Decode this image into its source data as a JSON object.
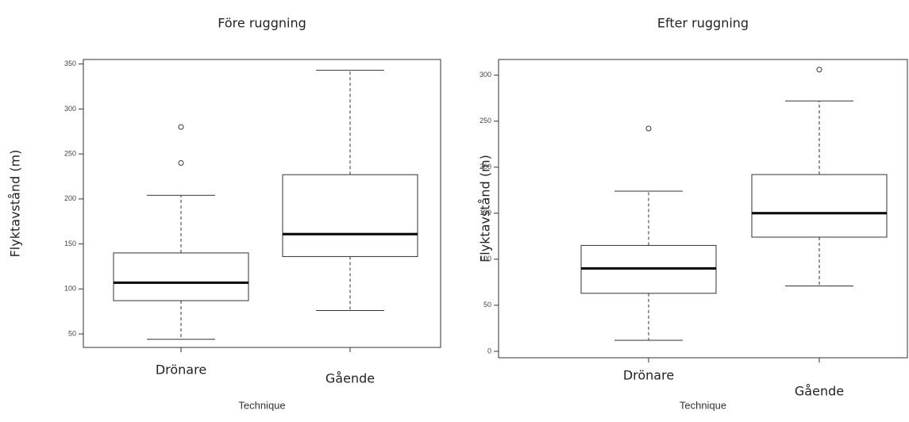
{
  "chart_data": [
    {
      "type": "box",
      "title": "Före ruggning",
      "x_label": "Technique",
      "y_label": "Flyktavstånd (m)",
      "categories": [
        "Drönare",
        "Gående"
      ],
      "boxes": [
        {
          "min": 44,
          "q1": 87,
          "median": 107,
          "q3": 140,
          "max": 204,
          "outliers": [
            240,
            280
          ]
        },
        {
          "min": 76,
          "q1": 136,
          "median": 161,
          "q3": 227,
          "max": 343,
          "outliers": []
        }
      ],
      "ylim": [
        35,
        355
      ],
      "yticks": [
        50,
        100,
        150,
        200,
        250,
        300,
        350
      ]
    },
    {
      "type": "box",
      "title": "Efter ruggning",
      "x_label": "Technique",
      "y_label": "Flyktavstånd (m)",
      "categories": [
        "Drönare",
        "Gående"
      ],
      "boxes": [
        {
          "min": 12,
          "q1": 63,
          "median": 90,
          "q3": 115,
          "max": 174,
          "outliers": [
            242
          ]
        },
        {
          "min": 71,
          "q1": 124,
          "median": 150,
          "q3": 192,
          "max": 272,
          "outliers": [
            306
          ]
        }
      ],
      "ylim": [
        -7,
        317
      ],
      "yticks": [
        0,
        50,
        100,
        150,
        200,
        250,
        300
      ]
    }
  ]
}
